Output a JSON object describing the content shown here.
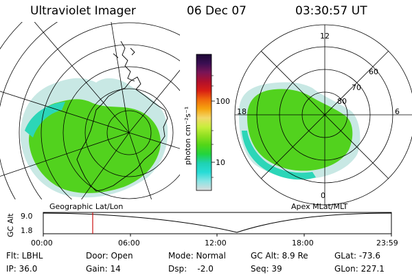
{
  "header": {
    "title": "Ultraviolet Imager",
    "date": "06 Dec 07",
    "time": "03:30:57 UT"
  },
  "colorbar": {
    "label": "photon cm⁻²s⁻¹",
    "ticks": [
      "100",
      "10"
    ],
    "scale": "log",
    "colors": [
      "#1c0834",
      "#3a0e52",
      "#7a1456",
      "#b0102c",
      "#d81e14",
      "#f06a0c",
      "#f6a40e",
      "#f2d86a",
      "#c8ee3c",
      "#8ee020",
      "#52d618",
      "#22d43e",
      "#1ed2b4",
      "#28dcd6",
      "#8ae4e4",
      "#dcdcdc"
    ]
  },
  "left_panel": {
    "caption": "Geographic Lat/Lon",
    "colors": {
      "land": "#ffffff",
      "aurora_main": "#52d21e",
      "aurora_edge": "#2cd6b8",
      "aurora_fringe": "#c8e8e4"
    }
  },
  "right_panel": {
    "caption": "Apex MLat/MLT",
    "mlt_labels": {
      "top": "12",
      "left": "18",
      "right": "6",
      "bottom": "0"
    },
    "lat_labels": [
      "60",
      "70",
      "80"
    ]
  },
  "altitude_plot": {
    "ylabel": "GC Alt",
    "yticks": [
      "9.0",
      "1.8"
    ],
    "xticks": [
      "00:00",
      "06:00",
      "12:00",
      "18:00",
      "23:59"
    ],
    "marker_color": "#cc1111"
  },
  "info": {
    "row1": {
      "flt": "Flt: LBHL",
      "door": "Door: Open",
      "mode": "Mode: Normal",
      "gcalt": "GC Alt: 8.9 Re",
      "glat": "GLat: -73.6"
    },
    "row2": {
      "ip": "IP: 36.0",
      "gain": "Gain: 14",
      "dsp": "Dsp:    -2.0",
      "seq": "Seq: 39",
      "glon": "GLon: 227.1"
    }
  }
}
